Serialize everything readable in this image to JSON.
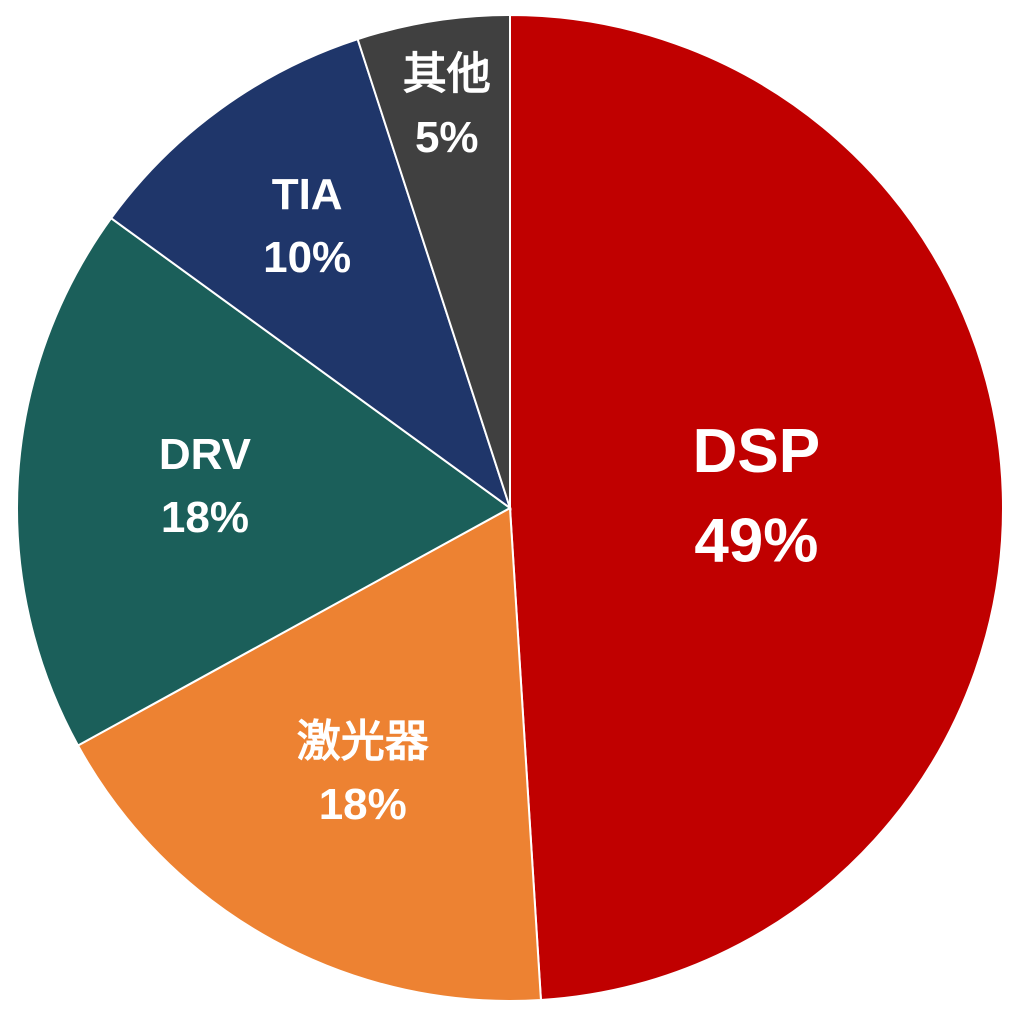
{
  "chart_data": {
    "type": "pie",
    "categories": [
      "DSP",
      "激光器",
      "DRV",
      "TIA",
      "其他"
    ],
    "values": [
      49,
      18,
      18,
      10,
      5
    ],
    "value_labels": [
      "49%",
      "18%",
      "18%",
      "10%",
      "5%"
    ],
    "colors": [
      "#c00000",
      "#ed8232",
      "#1b5f5a",
      "#1f366a",
      "#404040"
    ]
  }
}
